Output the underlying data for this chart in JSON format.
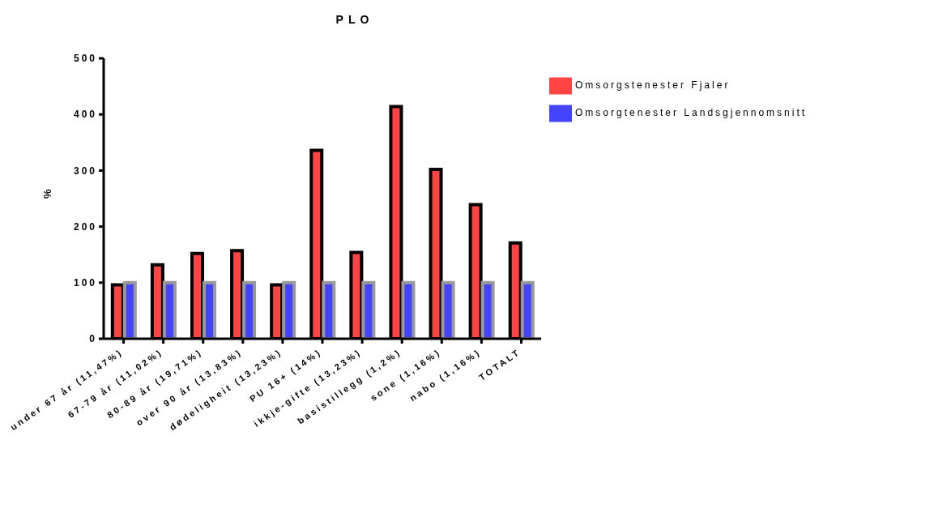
{
  "chart_data": {
    "type": "bar",
    "title": "PLO",
    "ylabel": "%",
    "categories": [
      "under 67 år (11,47%)",
      "67-79 år (11,02%)",
      "80-89 år (19,71%)",
      "over 90 år (13,83%)",
      "dødeligheit (13,23%)",
      "PU 16+ (14%)",
      "ikkje-gifte (13,23%)",
      "basistillegg (1,2%)",
      "sone (1,16%)",
      "nabo (1,16%)",
      "TOTALT"
    ],
    "series": [
      {
        "name": "Omsorgstenester Fjaler",
        "color": "#ff4444",
        "values": [
          96,
          132,
          152,
          157,
          96,
          336,
          154,
          414,
          302,
          239,
          171
        ]
      },
      {
        "name": "Omsorgtenester Landsgjennomsnitt",
        "color": "#4444ff",
        "values": [
          100,
          100,
          100,
          100,
          100,
          100,
          100,
          100,
          100,
          100,
          100
        ]
      }
    ],
    "ylim": [
      0,
      500
    ],
    "yticks": [
      0,
      100,
      200,
      300,
      400,
      500
    ],
    "grid": false,
    "legend": "top right"
  }
}
